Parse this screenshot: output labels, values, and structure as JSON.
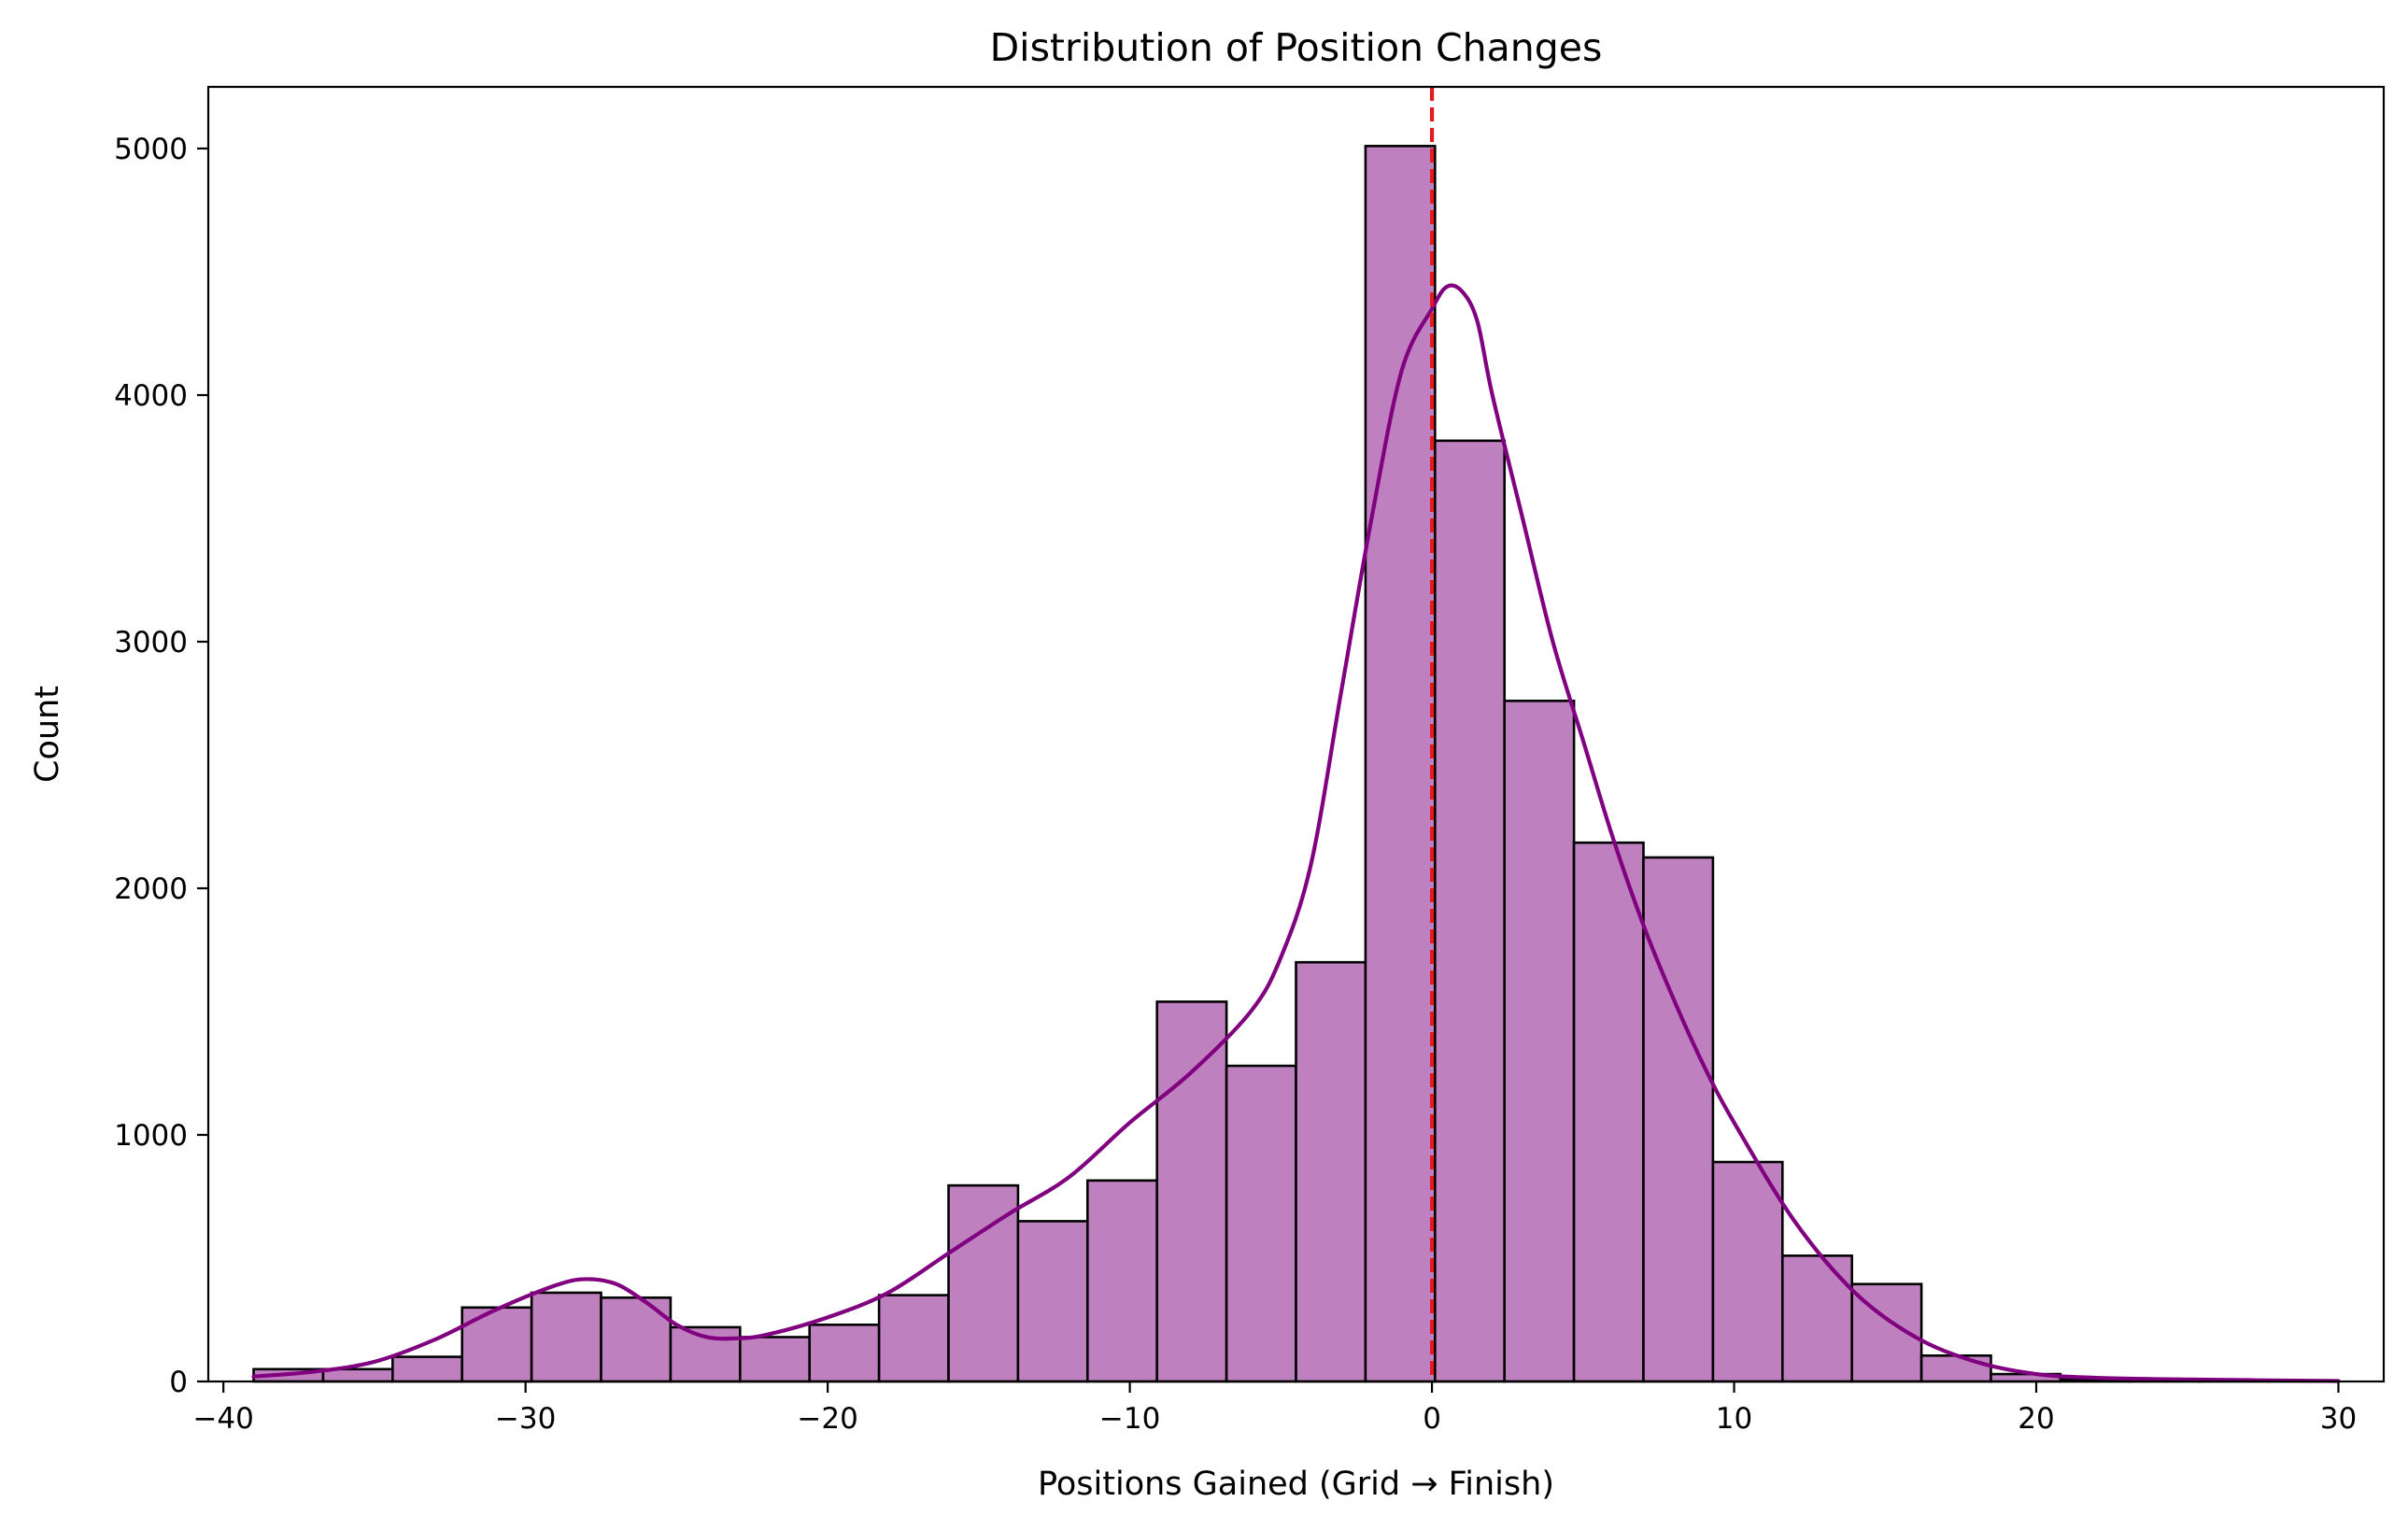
{
  "chart_data": {
    "type": "bar",
    "title": "Distribution of Position Changes",
    "xlabel": "Positions Gained (Grid → Finish)",
    "ylabel": "Count",
    "xlim": [
      -40.5,
      31.5
    ],
    "ylim": [
      0,
      5250
    ],
    "xticks": [
      -40,
      -30,
      -20,
      -10,
      0,
      10,
      20,
      30
    ],
    "xtick_labels": [
      "−40",
      "−30",
      "−20",
      "−10",
      "0",
      "10",
      "20",
      "30"
    ],
    "yticks": [
      0,
      1000,
      2000,
      3000,
      4000,
      5000
    ],
    "ytick_labels": [
      "0",
      "1000",
      "2000",
      "3000",
      "4000",
      "5000"
    ],
    "bin_start": -39,
    "bin_width": 2.3,
    "counts": [
      50,
      50,
      100,
      300,
      360,
      340,
      220,
      180,
      230,
      350,
      795,
      650,
      815,
      1540,
      1280,
      1700,
      5010,
      3815,
      2760,
      2185,
      2125,
      890,
      510,
      395,
      105,
      30,
      10,
      5,
      3,
      2
    ],
    "bar_color": "#bf80bf",
    "edge_color": "#000000",
    "kde_color": "#800080",
    "kde": {
      "x": [
        -39,
        -37,
        -35,
        -33,
        -31,
        -29,
        -28,
        -27,
        -26,
        -25,
        -24,
        -23,
        -22,
        -20,
        -18,
        -16,
        -14,
        -12,
        -10,
        -8,
        -6,
        -5,
        -4,
        -3,
        -2,
        -1,
        0,
        0.5,
        1,
        1.5,
        2,
        3,
        4,
        5,
        6,
        7,
        8,
        9,
        10,
        12,
        14,
        16,
        18,
        20,
        22,
        25,
        30
      ],
      "y": [
        20,
        40,
        80,
        170,
        290,
        390,
        415,
        395,
        320,
        230,
        180,
        175,
        190,
        260,
        360,
        520,
        680,
        830,
        1050,
        1250,
        1500,
        1720,
        2100,
        2800,
        3500,
        4100,
        4350,
        4440,
        4420,
        4300,
        4000,
        3500,
        3000,
        2600,
        2200,
        1850,
        1550,
        1280,
        1050,
        650,
        360,
        180,
        80,
        30,
        15,
        8,
        2
      ]
    },
    "reference_line": {
      "x": 0,
      "color": "#e41a1c",
      "style": "dashed"
    },
    "grid": false,
    "legend": "none"
  }
}
